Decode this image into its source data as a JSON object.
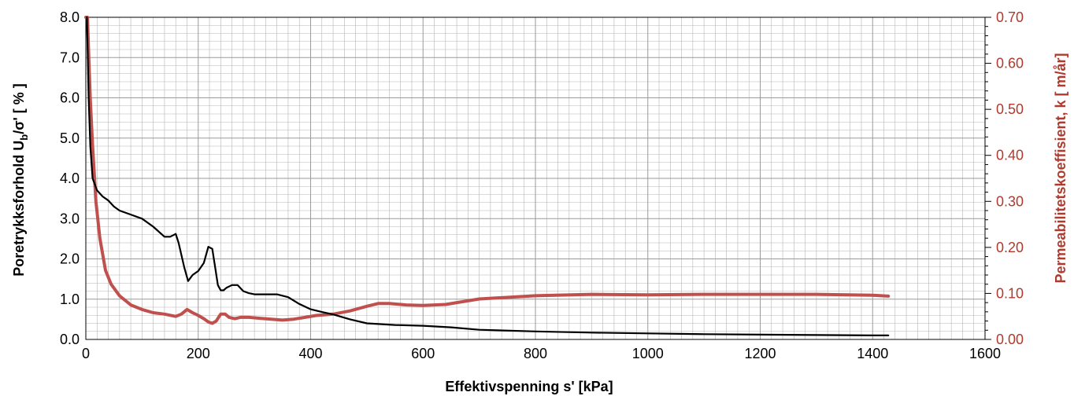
{
  "chart_data": {
    "type": "line",
    "xlabel": "Effektivspenning s' [kPa]",
    "ylabel_left": {
      "main": "Poretrykksforhold U",
      "sub": "b",
      "rest": "/σ' [  %  ]"
    },
    "ylabel_right": "Permeabilitetskoeffisient,  k [ m/år]",
    "xlim": [
      0,
      1600
    ],
    "ylim_left": [
      0,
      8
    ],
    "ylim_right": [
      0,
      0.7
    ],
    "x_ticks": [
      "0",
      "200",
      "400",
      "600",
      "800",
      "1000",
      "1200",
      "1400",
      "1600"
    ],
    "y_left_ticks": [
      "0.0",
      "1.0",
      "2.0",
      "3.0",
      "4.0",
      "5.0",
      "6.0",
      "7.0",
      "8.0"
    ],
    "y_right_ticks": [
      "0.00",
      "0.10",
      "0.20",
      "0.30",
      "0.40",
      "0.50",
      "0.60",
      "0.70"
    ],
    "grid": true,
    "colors": {
      "left_axis": "#000000",
      "right_axis": "#B03A2E",
      "grid": "#b5b5b5"
    },
    "series": [
      {
        "axis": "left",
        "color": "#000000",
        "x": [
          2,
          5,
          8,
          12,
          20,
          30,
          40,
          50,
          60,
          80,
          100,
          120,
          140,
          150,
          160,
          165,
          175,
          182,
          190,
          200,
          210,
          218,
          225,
          230,
          235,
          240,
          245,
          250,
          260,
          270,
          280,
          290,
          300,
          320,
          340,
          360,
          380,
          400,
          420,
          440,
          470,
          500,
          550,
          600,
          650,
          700,
          800,
          900,
          1000,
          1100,
          1200,
          1300,
          1400,
          1428
        ],
        "values": [
          8.0,
          6.0,
          4.8,
          4.0,
          3.7,
          3.55,
          3.45,
          3.3,
          3.2,
          3.1,
          3.0,
          2.8,
          2.55,
          2.55,
          2.62,
          2.4,
          1.8,
          1.45,
          1.6,
          1.7,
          1.9,
          2.3,
          2.25,
          1.8,
          1.35,
          1.22,
          1.22,
          1.28,
          1.35,
          1.35,
          1.2,
          1.15,
          1.12,
          1.12,
          1.12,
          1.05,
          0.88,
          0.75,
          0.68,
          0.62,
          0.5,
          0.4,
          0.36,
          0.34,
          0.3,
          0.24,
          0.2,
          0.17,
          0.15,
          0.13,
          0.12,
          0.11,
          0.1,
          0.1
        ]
      },
      {
        "axis": "right",
        "color": "#C0504D",
        "x": [
          0,
          3,
          5,
          8,
          12,
          18,
          25,
          35,
          45,
          60,
          80,
          100,
          120,
          140,
          160,
          170,
          180,
          190,
          200,
          210,
          218,
          225,
          232,
          240,
          248,
          255,
          265,
          275,
          290,
          310,
          330,
          350,
          370,
          390,
          410,
          440,
          470,
          500,
          520,
          540,
          570,
          600,
          640,
          700,
          800,
          900,
          1000,
          1100,
          1200,
          1300,
          1400,
          1428
        ],
        "values": [
          0.7,
          0.7,
          0.62,
          0.52,
          0.42,
          0.3,
          0.22,
          0.15,
          0.12,
          0.095,
          0.075,
          0.065,
          0.058,
          0.055,
          0.05,
          0.055,
          0.065,
          0.058,
          0.052,
          0.045,
          0.038,
          0.035,
          0.04,
          0.055,
          0.055,
          0.048,
          0.045,
          0.048,
          0.048,
          0.046,
          0.044,
          0.042,
          0.044,
          0.048,
          0.052,
          0.055,
          0.062,
          0.072,
          0.078,
          0.078,
          0.075,
          0.074,
          0.076,
          0.088,
          0.095,
          0.098,
          0.097,
          0.098,
          0.098,
          0.098,
          0.096,
          0.094
        ]
      }
    ]
  }
}
